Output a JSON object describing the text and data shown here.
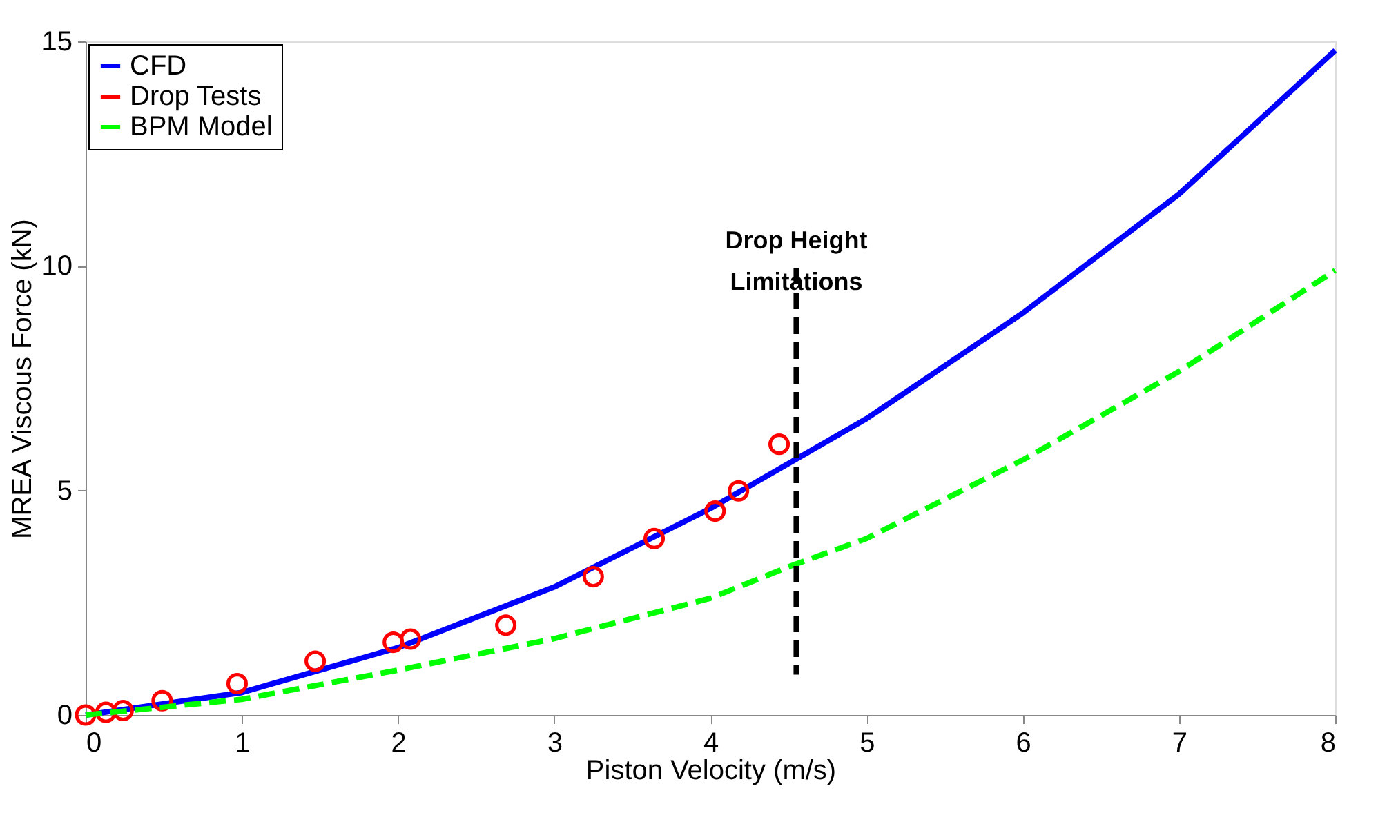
{
  "chart_data": {
    "type": "line",
    "xlabel": "Piston Velocity (m/s)",
    "ylabel": "MREA Viscous Force (kN)",
    "xlim": [
      0,
      8
    ],
    "xticks": [
      0,
      1,
      2,
      3,
      4,
      5,
      6,
      7,
      8
    ],
    "ylim": [
      0,
      15
    ],
    "yticks": [
      0,
      5,
      10,
      15
    ],
    "grid": false,
    "legend": "top left",
    "series": [
      {
        "name": "CFD",
        "color": "#0000ff",
        "line_style": "solid",
        "marker": "none",
        "x": [
          0,
          1,
          2,
          3,
          4,
          5,
          6,
          7,
          8
        ],
        "values": [
          0,
          0.5,
          1.5,
          2.85,
          4.6,
          6.6,
          8.95,
          11.6,
          14.8
        ]
      },
      {
        "name": "Drop Tests",
        "type": "scatter",
        "color": "#ff0000",
        "marker": "circle",
        "x": [
          0,
          0.13,
          0.24,
          0.49,
          0.97,
          1.47,
          1.97,
          2.08,
          2.69,
          3.25,
          3.64,
          4.03,
          4.18,
          4.44
        ],
        "values": [
          0,
          0.06,
          0.1,
          0.32,
          0.7,
          1.2,
          1.62,
          1.69,
          2.0,
          3.08,
          3.93,
          4.54,
          4.99,
          6.03
        ]
      },
      {
        "name": "BPM Model",
        "color": "#00ff00",
        "line_style": "dashed",
        "marker": "none",
        "x": [
          0,
          1,
          2,
          3,
          4,
          4.5,
          5,
          6,
          7,
          8
        ],
        "values": [
          0,
          0.35,
          1.0,
          1.7,
          2.6,
          3.3,
          3.93,
          5.68,
          7.65,
          9.9
        ]
      }
    ],
    "ref_lines": [
      {
        "axis": "x",
        "value": 4.55,
        "label": "Drop Height\nLimitations",
        "color": "#000000",
        "line_style": "dashed"
      }
    ]
  }
}
